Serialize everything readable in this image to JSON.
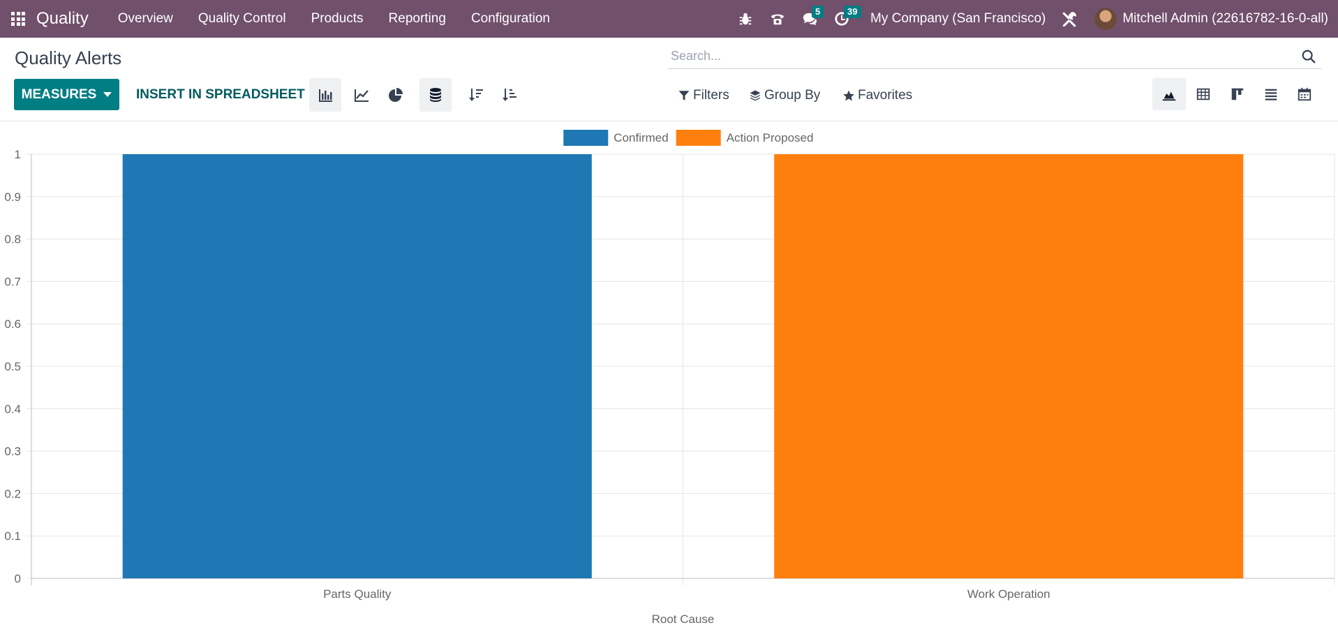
{
  "navbar": {
    "brand": "Quality",
    "menu": [
      "Overview",
      "Quality Control",
      "Products",
      "Reporting",
      "Configuration"
    ],
    "messages_count": "5",
    "activities_count": "39",
    "company": "My Company (San Francisco)",
    "user": "Mitchell Admin (22616782-16-0-all)"
  },
  "control_panel": {
    "title": "Quality Alerts",
    "search_placeholder": "Search...",
    "measures_label": "MEASURES",
    "insert_label": "INSERT IN SPREADSHEET",
    "filters_label": "Filters",
    "groupby_label": "Group By",
    "favorites_label": "Favorites"
  },
  "colors": {
    "navbar": "#71506c",
    "primary": "#017e84",
    "series_confirmed": "#1f77b4",
    "series_action_proposed": "#ff7f0e"
  },
  "chart_data": {
    "type": "bar",
    "categories": [
      "Parts Quality",
      "Work Operation"
    ],
    "series": [
      {
        "name": "Confirmed",
        "values": [
          1,
          0
        ],
        "color": "#1f77b4"
      },
      {
        "name": "Action Proposed",
        "values": [
          0,
          1
        ],
        "color": "#ff7f0e"
      }
    ],
    "xlabel": "Root Cause",
    "ylabel": "",
    "ylim": [
      0,
      1
    ],
    "yticks": [
      "0",
      "0.1",
      "0.2",
      "0.3",
      "0.4",
      "0.5",
      "0.6",
      "0.7",
      "0.8",
      "0.9",
      "1"
    ],
    "legend": "top-center",
    "grid": true,
    "stacked": true
  }
}
